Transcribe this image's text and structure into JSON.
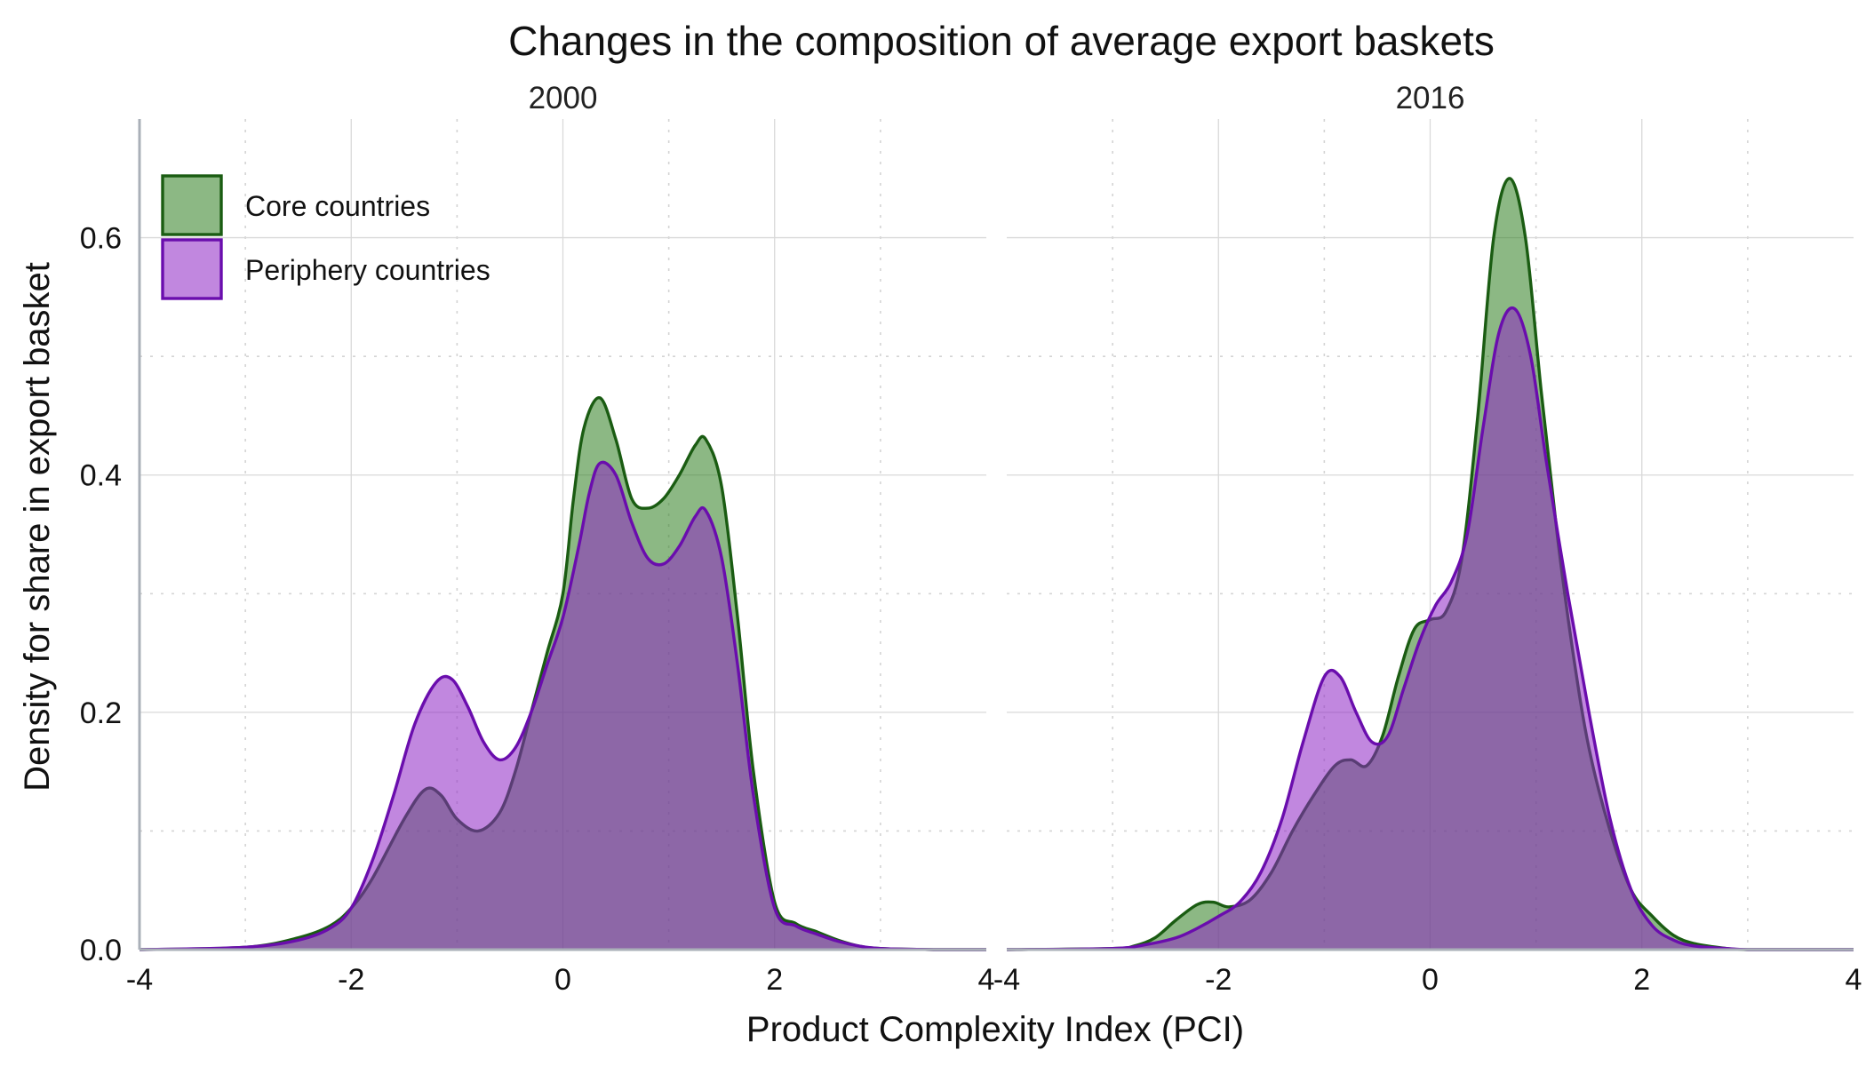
{
  "chart_data": {
    "type": "area",
    "title": "Changes in the composition of average export baskets",
    "xlabel": "Product Complexity Index (PCI)",
    "ylabel": "Density for share in export basket",
    "xlim": [
      -4,
      4
    ],
    "ylim": [
      0,
      0.7
    ],
    "x_ticks": [
      "-4",
      "-2",
      "0",
      "2",
      "4"
    ],
    "y_ticks": [
      "0.0",
      "0.2",
      "0.4",
      "0.6"
    ],
    "legend_placement": "top-left",
    "grid": true,
    "series_styles": [
      {
        "name": "Core countries",
        "fill": "#2e7d1f",
        "stroke": "#1a5c12"
      },
      {
        "name": "Periphery countries",
        "fill": "#8e24c4",
        "stroke": "#6a0dad"
      }
    ],
    "panels": [
      {
        "label": "2000",
        "series": [
          {
            "name": "Core countries",
            "x": [
              -4.0,
              -3.0,
              -2.5,
              -2.2,
              -2.0,
              -1.8,
              -1.5,
              -1.3,
              -1.15,
              -1.0,
              -0.8,
              -0.6,
              -0.45,
              -0.3,
              -0.15,
              0.0,
              0.1,
              0.2,
              0.35,
              0.5,
              0.65,
              0.8,
              0.95,
              1.1,
              1.25,
              1.35,
              1.5,
              1.65,
              1.8,
              2.0,
              2.2,
              2.4,
              2.6,
              2.8,
              3.0,
              3.5,
              4.0
            ],
            "y": [
              0.0,
              0.002,
              0.01,
              0.02,
              0.035,
              0.06,
              0.11,
              0.135,
              0.13,
              0.11,
              0.1,
              0.115,
              0.15,
              0.2,
              0.25,
              0.3,
              0.38,
              0.44,
              0.465,
              0.43,
              0.38,
              0.372,
              0.38,
              0.4,
              0.425,
              0.43,
              0.39,
              0.28,
              0.15,
              0.04,
              0.022,
              0.015,
              0.008,
              0.003,
              0.001,
              0.0,
              0.0
            ]
          },
          {
            "name": "Periphery countries",
            "x": [
              -4.0,
              -3.0,
              -2.5,
              -2.2,
              -2.0,
              -1.8,
              -1.6,
              -1.4,
              -1.2,
              -1.05,
              -0.9,
              -0.75,
              -0.6,
              -0.45,
              -0.3,
              -0.15,
              0.0,
              0.15,
              0.25,
              0.35,
              0.5,
              0.65,
              0.8,
              0.95,
              1.1,
              1.25,
              1.35,
              1.5,
              1.65,
              1.8,
              2.0,
              2.2,
              2.4,
              2.6,
              2.8,
              3.0,
              3.5,
              4.0
            ],
            "y": [
              0.0,
              0.002,
              0.008,
              0.018,
              0.035,
              0.075,
              0.13,
              0.19,
              0.225,
              0.228,
              0.205,
              0.175,
              0.16,
              0.17,
              0.2,
              0.24,
              0.28,
              0.34,
              0.385,
              0.41,
              0.4,
              0.36,
              0.33,
              0.325,
              0.34,
              0.365,
              0.37,
              0.33,
              0.24,
              0.13,
              0.035,
              0.02,
              0.013,
              0.007,
              0.003,
              0.001,
              0.0,
              0.0
            ]
          }
        ]
      },
      {
        "label": "2016",
        "series": [
          {
            "name": "Core countries",
            "x": [
              -4.0,
              -3.0,
              -2.8,
              -2.6,
              -2.4,
              -2.2,
              -2.05,
              -1.9,
              -1.7,
              -1.5,
              -1.3,
              -1.1,
              -0.9,
              -0.75,
              -0.6,
              -0.45,
              -0.3,
              -0.15,
              0.0,
              0.15,
              0.3,
              0.45,
              0.6,
              0.75,
              0.9,
              1.05,
              1.2,
              1.35,
              1.5,
              1.7,
              1.9,
              2.1,
              2.3,
              2.5,
              2.8,
              3.0,
              3.5,
              4.0
            ],
            "y": [
              0.0,
              0.001,
              0.003,
              0.01,
              0.025,
              0.038,
              0.04,
              0.036,
              0.042,
              0.065,
              0.1,
              0.13,
              0.155,
              0.16,
              0.155,
              0.18,
              0.23,
              0.27,
              0.278,
              0.285,
              0.33,
              0.45,
              0.6,
              0.65,
              0.6,
              0.47,
              0.35,
              0.25,
              0.17,
              0.1,
              0.05,
              0.028,
              0.012,
              0.005,
              0.001,
              0.0,
              0.0,
              0.0
            ]
          },
          {
            "name": "Periphery countries",
            "x": [
              -4.0,
              -3.0,
              -2.7,
              -2.4,
              -2.2,
              -2.0,
              -1.8,
              -1.6,
              -1.4,
              -1.2,
              -1.0,
              -0.85,
              -0.7,
              -0.55,
              -0.4,
              -0.25,
              -0.1,
              0.05,
              0.2,
              0.35,
              0.5,
              0.65,
              0.8,
              0.95,
              1.1,
              1.3,
              1.5,
              1.7,
              1.9,
              2.1,
              2.3,
              2.5,
              2.8,
              3.0,
              3.5,
              4.0
            ],
            "y": [
              0.0,
              0.001,
              0.004,
              0.01,
              0.018,
              0.028,
              0.04,
              0.065,
              0.11,
              0.175,
              0.23,
              0.23,
              0.2,
              0.175,
              0.18,
              0.22,
              0.26,
              0.29,
              0.31,
              0.35,
              0.44,
              0.52,
              0.54,
              0.5,
              0.41,
              0.3,
              0.2,
              0.11,
              0.05,
              0.02,
              0.008,
              0.003,
              0.001,
              0.0,
              0.0,
              0.0
            ]
          }
        ]
      }
    ]
  }
}
